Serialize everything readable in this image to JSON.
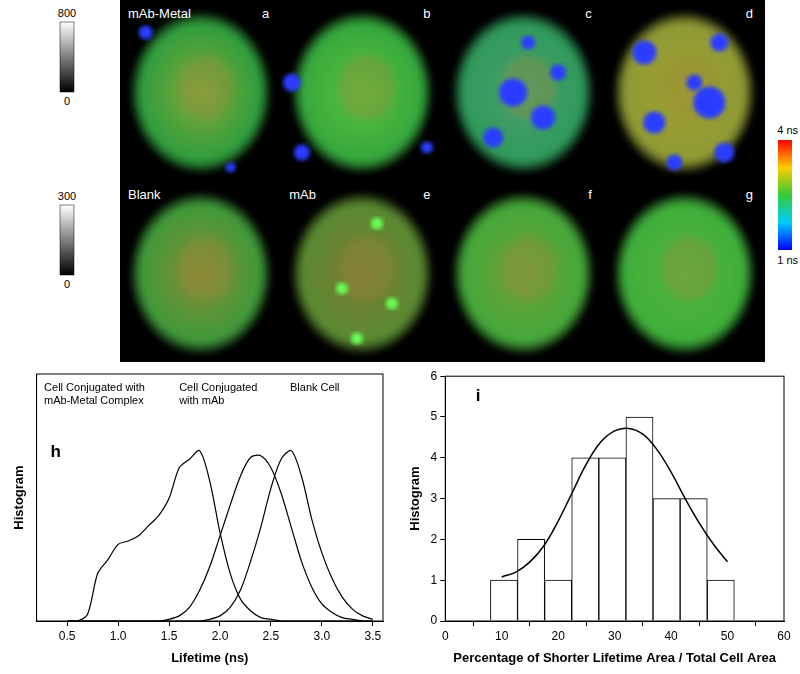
{
  "figure": {
    "panels": [
      {
        "letter": "a",
        "label": "mAb-Metal"
      },
      {
        "letter": "b"
      },
      {
        "letter": "c"
      },
      {
        "letter": "d"
      },
      {
        "label": "Blank"
      },
      {
        "letter": "e",
        "label": "mAb"
      },
      {
        "letter": "f"
      },
      {
        "letter": "g"
      }
    ],
    "intensity_bars": [
      {
        "ticks": [
          0,
          800
        ]
      },
      {
        "ticks": [
          0,
          300
        ]
      }
    ],
    "lifetime_bar": {
      "ticks": [
        {
          "value": 1,
          "label": "1 ns"
        },
        {
          "value": 4,
          "label": "4 ns"
        }
      ]
    }
  },
  "chart_data": [
    {
      "title": "h",
      "type": "line",
      "x": [
        0.5,
        0.6,
        0.7,
        0.8,
        0.9,
        1.0,
        1.1,
        1.2,
        1.3,
        1.4,
        1.5,
        1.6,
        1.7,
        1.8,
        1.9,
        2.0,
        2.1,
        2.2,
        2.3,
        2.4,
        2.5,
        2.6,
        2.7,
        2.8,
        2.9,
        3.0,
        3.1,
        3.2,
        3.3,
        3.4,
        3.5
      ],
      "series": [
        {
          "name": "Cell Conjugated with mAb-Metal Complex",
          "color": "#000000",
          "values": [
            0,
            0,
            0.04,
            0.28,
            0.36,
            0.45,
            0.47,
            0.5,
            0.56,
            0.62,
            0.72,
            0.9,
            0.95,
            1.0,
            0.82,
            0.52,
            0.28,
            0.13,
            0.06,
            0.02,
            0.01,
            0,
            0,
            0,
            0,
            0,
            0,
            0,
            0,
            0,
            0
          ]
        },
        {
          "name": "Cell Conjugated with mAb",
          "color": "#000000",
          "values": [
            0,
            0,
            0,
            0,
            0,
            0,
            0,
            0,
            0,
            0,
            0.01,
            0.03,
            0.08,
            0.18,
            0.32,
            0.5,
            0.68,
            0.85,
            0.96,
            0.97,
            0.9,
            0.75,
            0.55,
            0.35,
            0.2,
            0.1,
            0.05,
            0.02,
            0.01,
            0,
            0
          ]
        },
        {
          "name": "Blank Cell",
          "color": "#000000",
          "values": [
            0,
            0,
            0,
            0,
            0,
            0,
            0,
            0,
            0,
            0,
            0,
            0,
            0,
            0,
            0.01,
            0.03,
            0.08,
            0.18,
            0.35,
            0.55,
            0.78,
            0.95,
            1.0,
            0.85,
            0.6,
            0.4,
            0.25,
            0.14,
            0.07,
            0.03,
            0.01
          ]
        }
      ],
      "xlabel": "Lifetime (ns)",
      "ylabel": "Histogram",
      "xlim": [
        0.2,
        3.6
      ],
      "xticks": [
        0.5,
        {
          "value": 1,
          "label": "1.0"
        },
        1.5,
        {
          "value": 2,
          "label": "2.0"
        },
        2.5,
        {
          "value": 3,
          "label": "3.0"
        },
        3.5
      ],
      "ylim": [
        0,
        1.45
      ],
      "tick_labels": "x",
      "grid": false
    },
    {
      "title": "i",
      "type": "histogram",
      "bins": [
        8,
        12.8,
        17.6,
        22.4,
        27.2,
        32,
        36.8,
        41.6,
        46.4,
        51.2
      ],
      "counts": [
        1,
        2,
        1,
        4,
        4,
        5,
        3,
        3,
        1
      ],
      "color": "#000000",
      "fit": {
        "x": [
          10,
          12.5,
          15,
          17.5,
          20,
          22.5,
          25,
          27.5,
          30,
          32.5,
          35,
          37.5,
          40,
          42.5,
          45,
          47.5,
          50
        ],
        "values": [
          1.08,
          1.2,
          1.45,
          1.85,
          2.45,
          3.15,
          3.85,
          4.38,
          4.66,
          4.72,
          4.58,
          4.2,
          3.65,
          3.0,
          2.4,
          1.88,
          1.45
        ]
      },
      "xlabel": "Percentage of Shorter Lifetime Area / Total Cell Area",
      "ylabel": "Histogram",
      "xlim": [
        0,
        60
      ],
      "xticks": [
        0,
        10,
        20,
        30,
        40,
        50,
        60
      ],
      "ylim": [
        0,
        6
      ],
      "yticks": [
        0,
        1,
        2,
        3,
        4,
        5,
        6
      ],
      "grid": false
    }
  ]
}
